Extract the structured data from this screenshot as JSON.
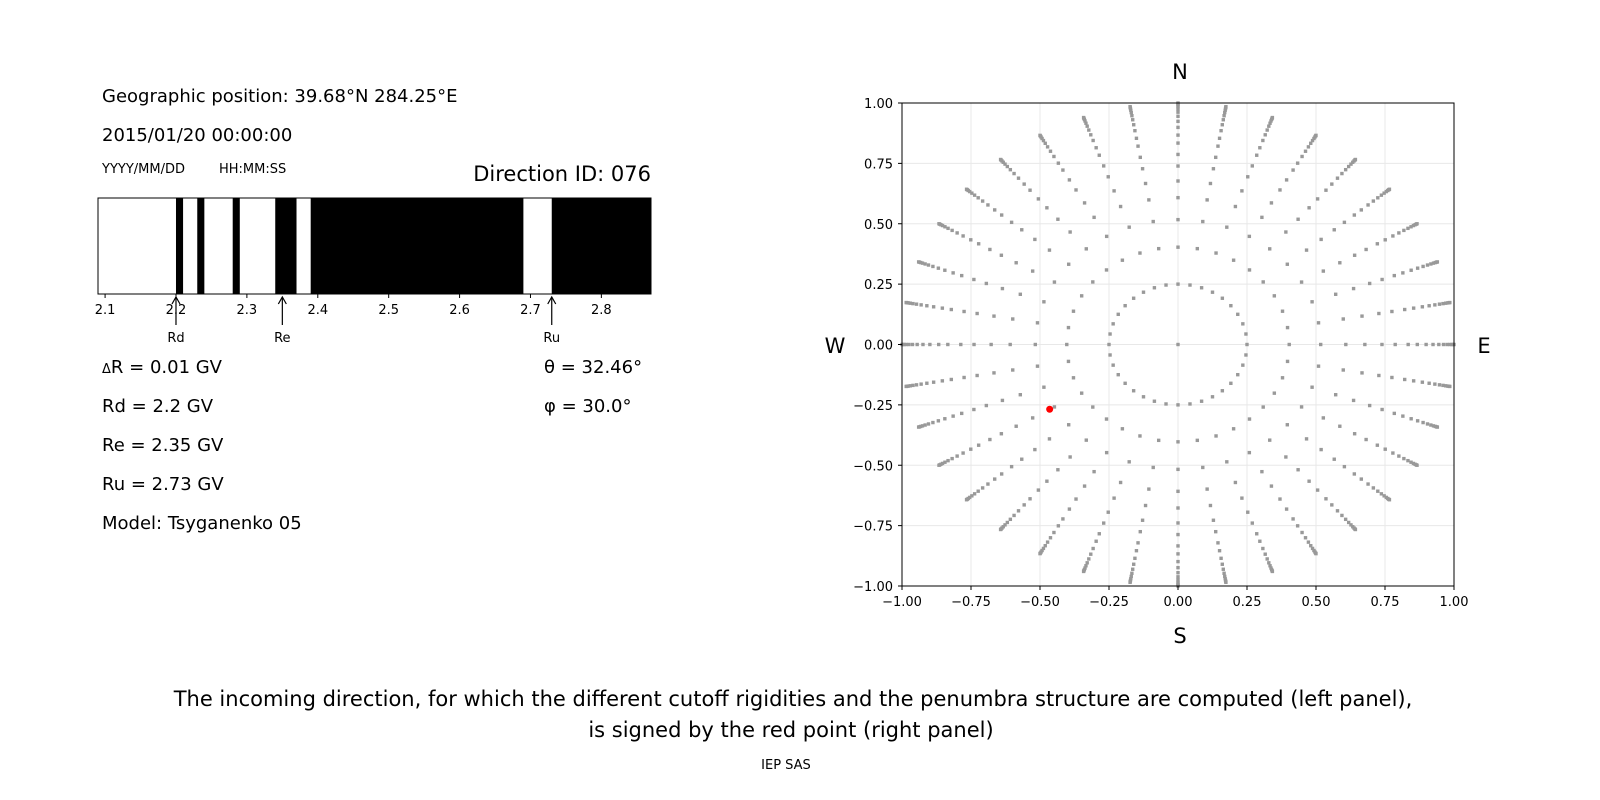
{
  "left_panel": {
    "position": "Geographic position: 39.68°N 284.25°E",
    "datetime": "2015/01/20 00:00:00",
    "date_format": "YYYY/MM/DD",
    "time_format": "HH:MM:SS",
    "direction_id": "Direction ID: 076",
    "delta_r": "R = 0.01 GV",
    "delta_symbol": "Δ",
    "rd": "Rd = 2.2 GV",
    "re": "Re = 2.35 GV",
    "ru": "Ru = 2.73 GV",
    "model": "Model: Tsyganenko 05",
    "theta": "θ = 32.46°",
    "phi": "φ = 30.0°"
  },
  "chart_data": [
    {
      "type": "bar",
      "subtype": "penumbra-strip",
      "xlim": [
        2.09,
        2.87
      ],
      "xticks": [
        "2.1",
        "2.2",
        "2.3",
        "2.4",
        "2.5",
        "2.6",
        "2.7",
        "2.8"
      ],
      "forbidden_intervals_black": [
        [
          2.2,
          2.21
        ],
        [
          2.23,
          2.24
        ],
        [
          2.28,
          2.29
        ],
        [
          2.34,
          2.37
        ],
        [
          2.39,
          2.69
        ],
        [
          2.73,
          2.87
        ]
      ],
      "markers": [
        {
          "label": "Rd",
          "value": 2.2
        },
        {
          "label": "Re",
          "value": 2.35
        },
        {
          "label": "Ru",
          "value": 2.73
        }
      ]
    },
    {
      "type": "scatter",
      "xlim": [
        -1,
        1
      ],
      "ylim": [
        -1,
        1
      ],
      "xticks": [
        "−1.00",
        "−0.75",
        "−0.50",
        "−0.25",
        "0.00",
        "0.25",
        "0.50",
        "0.75",
        "1.00"
      ],
      "yticks": [
        "−1.00",
        "−0.75",
        "−0.50",
        "−0.25",
        "0.00",
        "0.25",
        "0.50",
        "0.75",
        "1.00"
      ],
      "grid": true,
      "compass": {
        "n": "N",
        "s": "S",
        "w": "W",
        "e": "E"
      },
      "grid_points": {
        "center": [
          0,
          0
        ],
        "azimuth_step_deg": 10,
        "radii": [
          0.25,
          0.403,
          0.517,
          0.608,
          0.677,
          0.739,
          0.787,
          0.834,
          0.867,
          0.899,
          0.924,
          0.945,
          0.962,
          0.975,
          0.985,
          0.992,
          0.997,
          1.0
        ],
        "color": "#999999"
      },
      "selected_point": {
        "x": -0.465,
        "y": -0.268,
        "color": "#ff0000"
      }
    }
  ],
  "caption": {
    "line1": "The incoming direction, for which the different cutoff rigidities and the penumbra structure are computed (left panel),",
    "line2": "is signed by the red point (right panel)"
  },
  "footer": "IEP SAS"
}
